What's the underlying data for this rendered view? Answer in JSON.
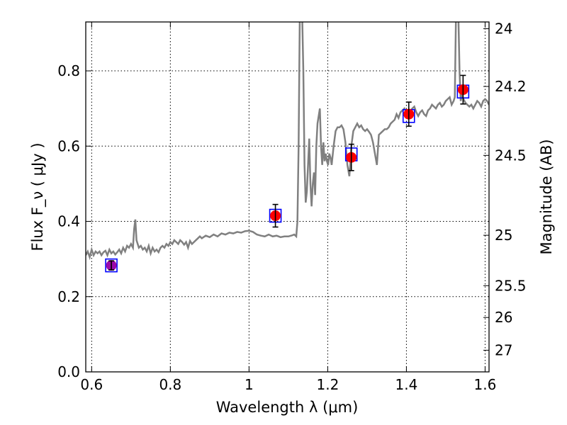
{
  "chart_data": {
    "type": "line",
    "xlabel": "Wavelength  λ (μm)",
    "ylabel": "Flux  F_ν  ( μJy )",
    "ylabel_right": "Magnitude (AB)",
    "xlim": [
      0.585,
      1.61
    ],
    "ylim": [
      0.0,
      0.93
    ],
    "grid": true,
    "x_ticks": [
      0.6,
      0.8,
      1.0,
      1.2,
      1.4,
      1.6
    ],
    "x_tick_labels": [
      "0.6",
      "0.8",
      "1",
      "1.2",
      "1.4",
      "1.6"
    ],
    "y_ticks": [
      0.0,
      0.2,
      0.4,
      0.6,
      0.8
    ],
    "y_tick_labels": [
      "0.0",
      "0.2",
      "0.4",
      "0.6",
      "0.8"
    ],
    "right_ticks": [
      24,
      24.2,
      24.5,
      25,
      25.5,
      26,
      27
    ],
    "right_tick_labels": [
      "24",
      "24.2",
      "24.5",
      "25",
      "25.5",
      "26",
      "27"
    ],
    "colors": {
      "spectrum": "#808080",
      "points": "#ff0000",
      "boxes": "#0000ff",
      "first_point": "#9a0aa8",
      "errorbars": "#000000"
    },
    "spectrum": {
      "x": [
        0.585,
        0.59,
        0.595,
        0.6,
        0.605,
        0.61,
        0.615,
        0.62,
        0.625,
        0.63,
        0.635,
        0.64,
        0.645,
        0.65,
        0.655,
        0.66,
        0.665,
        0.67,
        0.675,
        0.68,
        0.685,
        0.69,
        0.695,
        0.7,
        0.705,
        0.708,
        0.711,
        0.714,
        0.72,
        0.725,
        0.73,
        0.735,
        0.74,
        0.745,
        0.75,
        0.755,
        0.76,
        0.765,
        0.77,
        0.775,
        0.78,
        0.785,
        0.79,
        0.795,
        0.8,
        0.805,
        0.81,
        0.815,
        0.82,
        0.825,
        0.83,
        0.835,
        0.84,
        0.845,
        0.85,
        0.855,
        0.86,
        0.865,
        0.87,
        0.875,
        0.88,
        0.89,
        0.9,
        0.91,
        0.92,
        0.93,
        0.94,
        0.95,
        0.96,
        0.97,
        0.98,
        0.99,
        1.0,
        1.01,
        1.02,
        1.03,
        1.04,
        1.05,
        1.06,
        1.07,
        1.08,
        1.09,
        1.1,
        1.11,
        1.115,
        1.12,
        1.123,
        1.126,
        1.129,
        1.132,
        1.135,
        1.138,
        1.141,
        1.144,
        1.147,
        1.15,
        1.153,
        1.156,
        1.159,
        1.162,
        1.165,
        1.168,
        1.171,
        1.174,
        1.177,
        1.18,
        1.183,
        1.186,
        1.189,
        1.192,
        1.195,
        1.198,
        1.201,
        1.204,
        1.207,
        1.21,
        1.215,
        1.22,
        1.225,
        1.23,
        1.235,
        1.24,
        1.245,
        1.25,
        1.255,
        1.258,
        1.26,
        1.265,
        1.27,
        1.275,
        1.28,
        1.285,
        1.29,
        1.295,
        1.3,
        1.305,
        1.31,
        1.315,
        1.32,
        1.325,
        1.33,
        1.335,
        1.34,
        1.345,
        1.35,
        1.355,
        1.36,
        1.365,
        1.37,
        1.375,
        1.38,
        1.385,
        1.39,
        1.395,
        1.4,
        1.405,
        1.41,
        1.415,
        1.42,
        1.425,
        1.43,
        1.435,
        1.44,
        1.445,
        1.45,
        1.455,
        1.46,
        1.465,
        1.47,
        1.475,
        1.48,
        1.485,
        1.49,
        1.495,
        1.5,
        1.505,
        1.51,
        1.515,
        1.52,
        1.523,
        1.526,
        1.529,
        1.532,
        1.535,
        1.538,
        1.541,
        1.545,
        1.55,
        1.555,
        1.56,
        1.565,
        1.57,
        1.575,
        1.58,
        1.585,
        1.59,
        1.595,
        1.6,
        1.605,
        1.61
      ],
      "y": [
        0.31,
        0.32,
        0.305,
        0.325,
        0.31,
        0.32,
        0.315,
        0.32,
        0.31,
        0.318,
        0.322,
        0.31,
        0.325,
        0.315,
        0.32,
        0.312,
        0.318,
        0.325,
        0.315,
        0.33,
        0.32,
        0.335,
        0.33,
        0.34,
        0.33,
        0.38,
        0.405,
        0.35,
        0.33,
        0.335,
        0.325,
        0.33,
        0.32,
        0.335,
        0.315,
        0.33,
        0.32,
        0.325,
        0.318,
        0.33,
        0.335,
        0.33,
        0.34,
        0.335,
        0.345,
        0.34,
        0.35,
        0.345,
        0.34,
        0.35,
        0.345,
        0.338,
        0.345,
        0.33,
        0.348,
        0.34,
        0.345,
        0.35,
        0.355,
        0.36,
        0.355,
        0.362,
        0.358,
        0.365,
        0.36,
        0.368,
        0.365,
        0.37,
        0.368,
        0.372,
        0.37,
        0.374,
        0.375,
        0.372,
        0.365,
        0.362,
        0.36,
        0.365,
        0.36,
        0.362,
        0.358,
        0.36,
        0.36,
        0.363,
        0.365,
        0.36,
        0.4,
        0.6,
        0.95,
        0.95,
        0.95,
        0.8,
        0.55,
        0.45,
        0.48,
        0.55,
        0.62,
        0.5,
        0.44,
        0.5,
        0.53,
        0.47,
        0.6,
        0.66,
        0.68,
        0.7,
        0.6,
        0.55,
        0.61,
        0.56,
        0.58,
        0.56,
        0.55,
        0.58,
        0.57,
        0.55,
        0.6,
        0.64,
        0.65,
        0.65,
        0.655,
        0.645,
        0.61,
        0.55,
        0.52,
        0.56,
        0.6,
        0.64,
        0.65,
        0.66,
        0.65,
        0.655,
        0.645,
        0.64,
        0.645,
        0.638,
        0.63,
        0.61,
        0.58,
        0.55,
        0.63,
        0.635,
        0.64,
        0.645,
        0.645,
        0.65,
        0.66,
        0.665,
        0.67,
        0.685,
        0.675,
        0.69,
        0.695,
        0.7,
        0.69,
        0.685,
        0.695,
        0.7,
        0.705,
        0.69,
        0.68,
        0.69,
        0.695,
        0.685,
        0.68,
        0.695,
        0.7,
        0.71,
        0.705,
        0.7,
        0.71,
        0.715,
        0.705,
        0.71,
        0.72,
        0.725,
        0.73,
        0.71,
        0.72,
        0.73,
        0.95,
        0.95,
        0.95,
        0.8,
        0.72,
        0.735,
        0.725,
        0.715,
        0.71,
        0.705,
        0.71,
        0.7,
        0.71,
        0.72,
        0.715,
        0.705,
        0.72,
        0.725,
        0.72,
        0.71
      ]
    },
    "points": [
      {
        "x": 0.65,
        "y": 0.283,
        "yerr": 0.012,
        "box_y": 0.283,
        "color": "first_point"
      },
      {
        "x": 1.067,
        "y": 0.415,
        "yerr": 0.03,
        "box_y": 0.415
      },
      {
        "x": 1.26,
        "y": 0.57,
        "yerr": 0.035,
        "box_y": 0.578
      },
      {
        "x": 1.406,
        "y": 0.685,
        "yerr": 0.032,
        "box_y": 0.68
      },
      {
        "x": 1.544,
        "y": 0.75,
        "yerr": 0.038,
        "box_y": 0.745
      }
    ]
  }
}
